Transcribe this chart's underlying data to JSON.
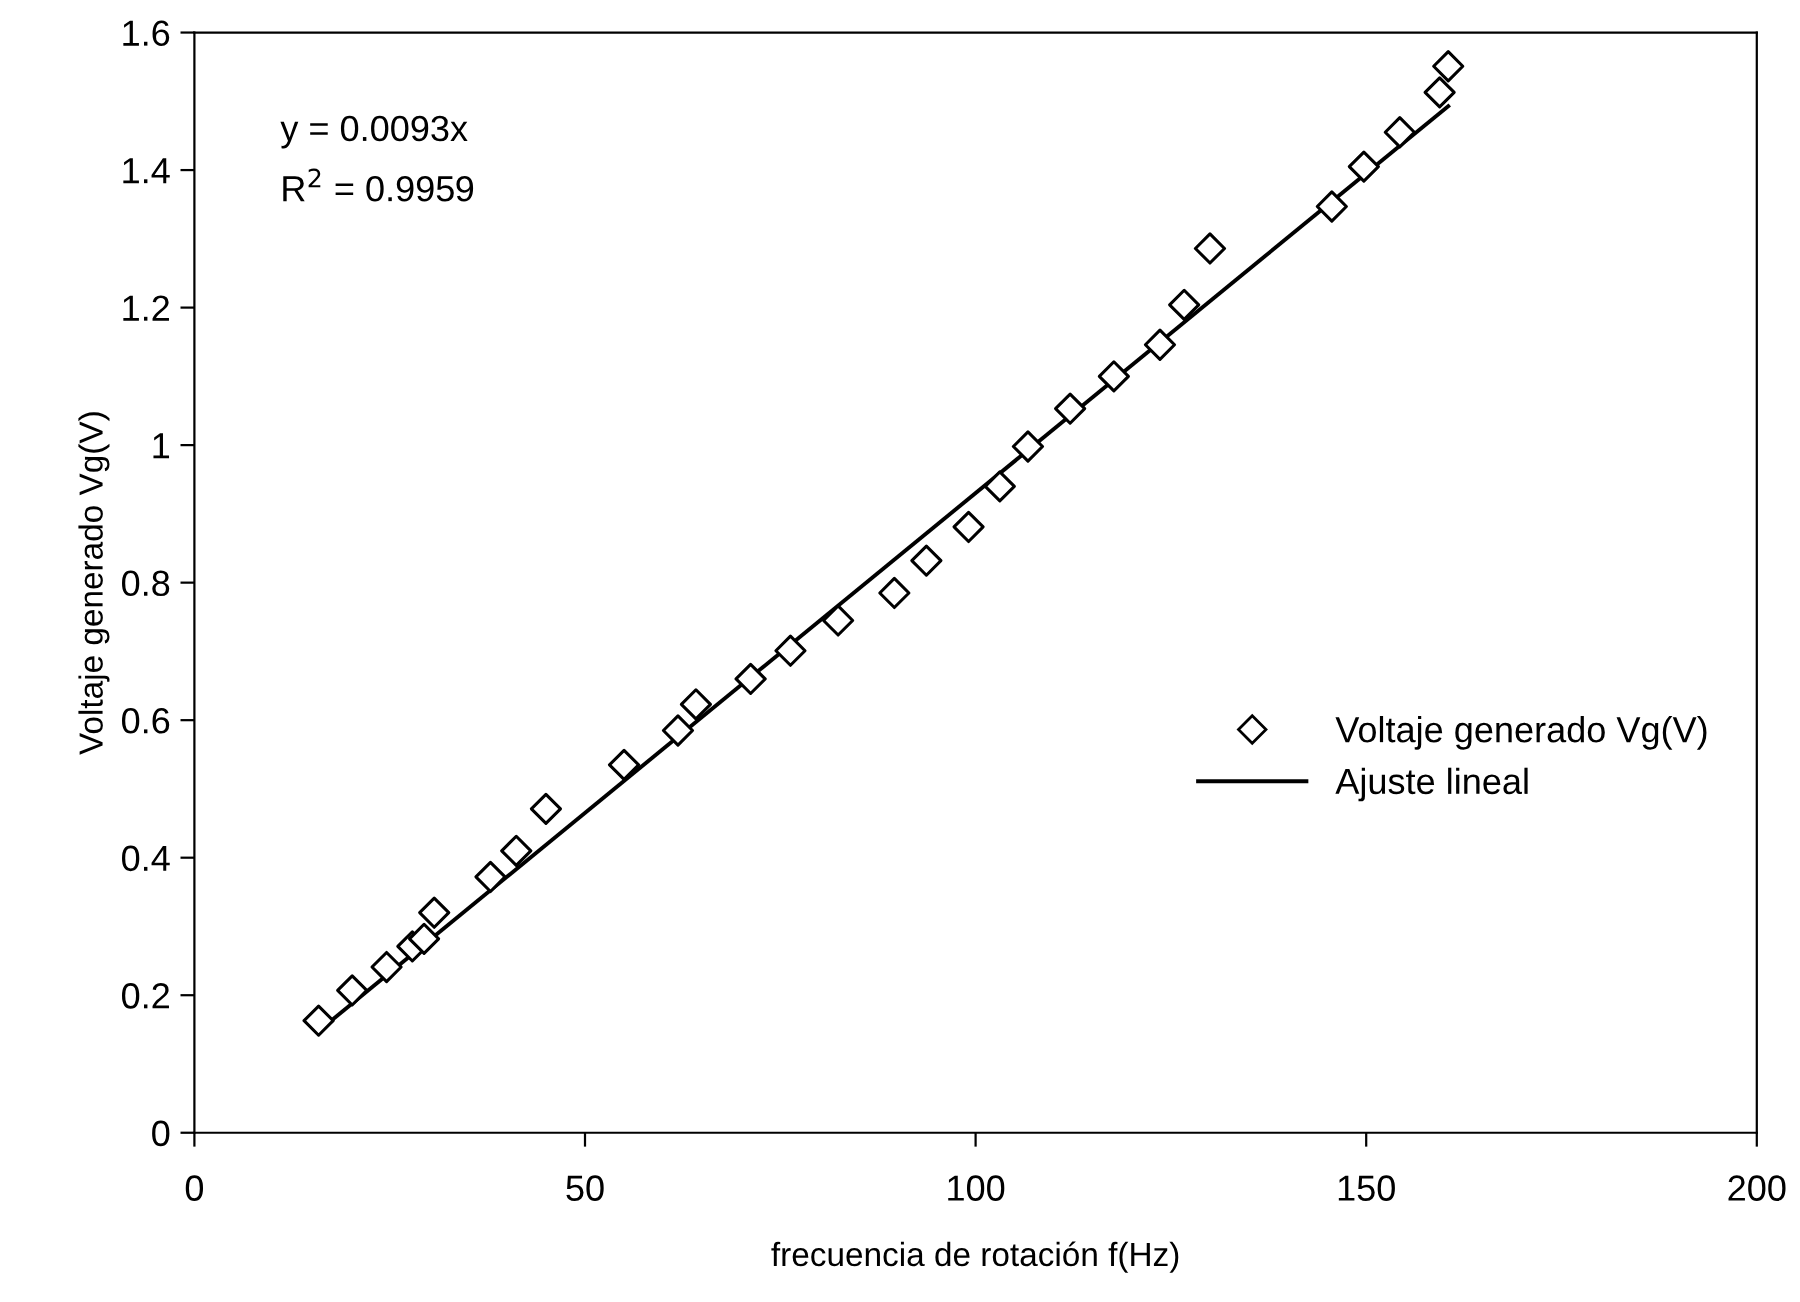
{
  "chart_data": {
    "type": "scatter",
    "xlabel": "frecuencia de rotación f(Hz)",
    "ylabel": "Voltaje generado Vg(V)",
    "xlim": [
      0,
      200
    ],
    "xticks": [
      0,
      50,
      100,
      150,
      200
    ],
    "ylim": [
      0,
      1.6
    ],
    "yticks": [
      0,
      0.2,
      0.4,
      0.6,
      0.8,
      1,
      1.2,
      1.4,
      1.6
    ],
    "grid": false,
    "legend": "right",
    "annotations": [
      "y = 0.0093x",
      "R$^{2}$ = 0.9959"
    ],
    "series": [
      {
        "name": "Voltaje generado Vg(V)",
        "color": "#000000",
        "marker": "diamond",
        "x": [
          15.9,
          20.2,
          24.6,
          27.9,
          29.4,
          30.7,
          37.9,
          41.2,
          45.0,
          55.0,
          61.9,
          64.2,
          71.2,
          76.3,
          82.4,
          89.6,
          93.7,
          99.1,
          103.1,
          106.7,
          112.1,
          117.7,
          123.6,
          126.7,
          130.0,
          145.6,
          149.7,
          154.3,
          159.4,
          160.5
        ],
        "values": [
          0.163,
          0.207,
          0.241,
          0.271,
          0.282,
          0.32,
          0.372,
          0.41,
          0.471,
          0.535,
          0.585,
          0.623,
          0.66,
          0.701,
          0.745,
          0.785,
          0.832,
          0.881,
          0.94,
          0.998,
          1.053,
          1.1,
          1.146,
          1.204,
          1.286,
          1.347,
          1.405,
          1.455,
          1.513,
          1.551
        ]
      },
      {
        "name": "Ajuste lineal",
        "type": "line",
        "color": "#000000",
        "marker": "none",
        "line_style": "solid",
        "x": [
          15.9,
          160.5
        ],
        "values": [
          0.148,
          1.493
        ]
      }
    ]
  }
}
